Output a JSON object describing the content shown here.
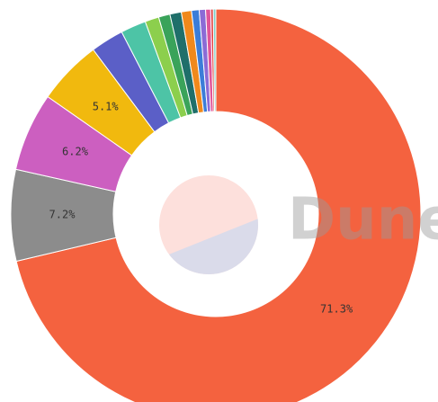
{
  "chart_data": {
    "type": "donut",
    "values": [
      71.3,
      7.2,
      6.2,
      5.1,
      2.6,
      2.0,
      1.1,
      0.9,
      0.9,
      0.8,
      0.6,
      0.5,
      0.4,
      0.2,
      0.2
    ],
    "value_labels": [
      "71.3%",
      "7.2%",
      "6.2%",
      "5.1%",
      null,
      null,
      null,
      null,
      null,
      null,
      null,
      null,
      null,
      null,
      null
    ],
    "colors": [
      "#f4623f",
      "#8c8c8c",
      "#cc5fc0",
      "#f1b90e",
      "#5b5fc7",
      "#4dc4a6",
      "#8ccf4d",
      "#3aa35a",
      "#1f6f6a",
      "#f0891c",
      "#3b7dd8",
      "#8b6bd6",
      "#e0559a",
      "#e23b3b",
      "#7fd1c9"
    ],
    "watermark": "Dune"
  }
}
